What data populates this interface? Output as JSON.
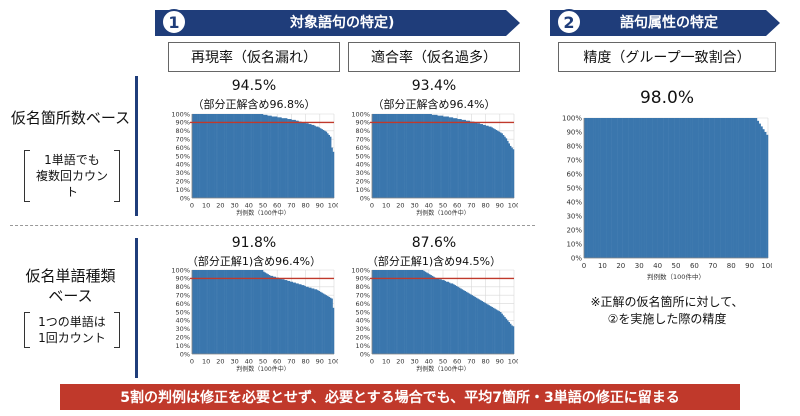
{
  "section1": {
    "number": "1",
    "title": "対象語句の特定)"
  },
  "section2": {
    "number": "2",
    "title": "語句属性の特定"
  },
  "columns": {
    "recall": "再現率（仮名漏れ）",
    "precision": "適合率（仮名過多）",
    "accuracy": "精度（グループ一致割合）"
  },
  "rows": {
    "top": {
      "label": "仮名箇所数ベース",
      "note_line1": "1単語でも",
      "note_line2": "複数回カウント"
    },
    "bottom": {
      "label_line1": "仮名単語種類",
      "label_line2": "ベース",
      "note_line1": "1つの単語は",
      "note_line2": "1回カウント"
    }
  },
  "metrics": {
    "top_recall": {
      "main": "94.5%",
      "sub": "（部分正解含め96.8%）"
    },
    "top_precision": {
      "main": "93.4%",
      "sub": "（部分正解含め96.4%）"
    },
    "bottom_recall": {
      "main": "91.8%",
      "sub": "（部分正解1)含め96.4%）"
    },
    "bottom_precision": {
      "main": "87.6%",
      "sub": "（部分正解1)含め94.5%）"
    },
    "accuracy": {
      "main": "98.0%"
    }
  },
  "note": {
    "line1": "※正解の仮名箇所に対して、",
    "line2": "②を実施した際の精度"
  },
  "footer": "5割の判例は修正を必要とせず、必要とする場合でも、平均7箇所・3単語の修正に留まる",
  "colors": {
    "navy": "#1f3d7a",
    "bar": "#3a76ad",
    "refline": "#c0392b",
    "footer": "#c0392b"
  },
  "chart_data": [
    {
      "id": "top_recall",
      "type": "bar",
      "xlabel": "判例数（100件中）",
      "ylim": [
        0,
        100
      ],
      "xlim": [
        0,
        100
      ],
      "x_ticks": [
        0,
        10,
        20,
        30,
        40,
        50,
        60,
        70,
        80,
        90,
        100
      ],
      "y_ticks": [
        "0%",
        "10%",
        "20%",
        "30%",
        "40%",
        "50%",
        "60%",
        "70%",
        "80%",
        "90%",
        "100%"
      ],
      "reference_line": 90,
      "values": [
        100,
        100,
        100,
        100,
        100,
        100,
        100,
        100,
        100,
        100,
        100,
        100,
        100,
        100,
        100,
        100,
        100,
        100,
        100,
        100,
        100,
        100,
        100,
        100,
        100,
        100,
        100,
        100,
        100,
        100,
        100,
        100,
        100,
        100,
        100,
        100,
        100,
        100,
        100,
        100,
        100,
        100,
        100,
        100,
        100,
        100,
        100,
        100,
        100,
        100,
        99,
        99,
        99,
        98,
        98,
        98,
        97,
        97,
        97,
        97,
        96,
        96,
        96,
        95,
        95,
        95,
        95,
        94,
        94,
        94,
        93,
        93,
        93,
        92,
        92,
        91,
        91,
        90,
        90,
        90,
        89,
        89,
        88,
        88,
        87,
        87,
        86,
        85,
        85,
        84,
        83,
        82,
        81,
        80,
        79,
        77,
        75,
        73,
        60,
        55
      ]
    },
    {
      "id": "top_precision",
      "type": "bar",
      "xlabel": "判例数（100件中）",
      "ylim": [
        0,
        100
      ],
      "xlim": [
        0,
        100
      ],
      "x_ticks": [
        0,
        10,
        20,
        30,
        40,
        50,
        60,
        70,
        80,
        90,
        100
      ],
      "y_ticks": [
        "0%",
        "10%",
        "20%",
        "30%",
        "40%",
        "50%",
        "60%",
        "70%",
        "80%",
        "90%",
        "100%"
      ],
      "reference_line": 90,
      "values": [
        100,
        100,
        100,
        100,
        100,
        100,
        100,
        100,
        100,
        100,
        100,
        100,
        100,
        100,
        100,
        100,
        100,
        100,
        100,
        100,
        100,
        100,
        100,
        100,
        100,
        100,
        100,
        100,
        100,
        100,
        100,
        100,
        100,
        100,
        100,
        100,
        100,
        100,
        100,
        100,
        100,
        100,
        99,
        99,
        99,
        99,
        98,
        98,
        98,
        98,
        97,
        97,
        97,
        97,
        96,
        96,
        96,
        95,
        95,
        95,
        94,
        94,
        94,
        93,
        93,
        93,
        92,
        92,
        92,
        91,
        91,
        91,
        90,
        90,
        89,
        89,
        88,
        88,
        87,
        87,
        86,
        86,
        85,
        85,
        84,
        83,
        82,
        81,
        80,
        79,
        78,
        77,
        75,
        73,
        71,
        68,
        65,
        62,
        60,
        58
      ]
    },
    {
      "id": "bottom_recall",
      "type": "bar",
      "xlabel": "判例数（100件中）",
      "ylim": [
        0,
        100
      ],
      "xlim": [
        0,
        100
      ],
      "x_ticks": [
        0,
        10,
        20,
        30,
        40,
        50,
        60,
        70,
        80,
        90,
        100
      ],
      "y_ticks": [
        "0%",
        "10%",
        "20%",
        "30%",
        "40%",
        "50%",
        "60%",
        "70%",
        "80%",
        "90%",
        "100%"
      ],
      "reference_line": 90,
      "values": [
        100,
        100,
        100,
        100,
        100,
        100,
        100,
        100,
        100,
        100,
        100,
        100,
        100,
        100,
        100,
        100,
        100,
        100,
        100,
        100,
        100,
        100,
        100,
        100,
        100,
        100,
        100,
        100,
        100,
        100,
        100,
        100,
        100,
        100,
        100,
        100,
        100,
        100,
        100,
        100,
        100,
        100,
        100,
        100,
        100,
        100,
        100,
        100,
        100,
        100,
        98,
        97,
        96,
        95,
        94,
        93,
        93,
        92,
        92,
        91,
        91,
        90,
        90,
        89,
        89,
        88,
        88,
        87,
        87,
        86,
        86,
        85,
        85,
        84,
        84,
        83,
        83,
        82,
        82,
        81,
        80,
        80,
        79,
        79,
        78,
        78,
        77,
        77,
        76,
        75,
        74,
        73,
        72,
        71,
        70,
        69,
        68,
        67,
        66,
        55
      ]
    },
    {
      "id": "bottom_precision",
      "type": "bar",
      "xlabel": "判例数（100件中）",
      "ylim": [
        0,
        100
      ],
      "xlim": [
        0,
        100
      ],
      "x_ticks": [
        0,
        10,
        20,
        30,
        40,
        50,
        60,
        70,
        80,
        90,
        100
      ],
      "y_ticks": [
        "0%",
        "10%",
        "20%",
        "30%",
        "40%",
        "50%",
        "60%",
        "70%",
        "80%",
        "90%",
        "100%"
      ],
      "reference_line": 90,
      "values": [
        100,
        100,
        100,
        100,
        100,
        100,
        100,
        100,
        100,
        100,
        100,
        100,
        100,
        100,
        100,
        100,
        100,
        100,
        100,
        100,
        100,
        100,
        100,
        100,
        100,
        100,
        100,
        100,
        100,
        100,
        100,
        100,
        100,
        100,
        100,
        100,
        99,
        98,
        97,
        96,
        95,
        94,
        93,
        92,
        91,
        90,
        90,
        89,
        89,
        88,
        88,
        87,
        86,
        86,
        85,
        84,
        84,
        83,
        82,
        81,
        80,
        79,
        78,
        77,
        76,
        75,
        74,
        73,
        72,
        71,
        70,
        69,
        68,
        67,
        66,
        65,
        64,
        63,
        62,
        61,
        60,
        59,
        58,
        57,
        56,
        55,
        54,
        53,
        52,
        51,
        50,
        48,
        46,
        44,
        42,
        40,
        38,
        36,
        34,
        33
      ]
    },
    {
      "id": "accuracy",
      "type": "bar",
      "xlabel": "判例数（100件中）",
      "ylim": [
        0,
        100
      ],
      "xlim": [
        0,
        100
      ],
      "x_ticks": [
        0,
        10,
        20,
        30,
        40,
        50,
        60,
        70,
        80,
        90,
        100
      ],
      "y_ticks": [
        "0%",
        "10%",
        "20%",
        "30%",
        "40%",
        "50%",
        "60%",
        "70%",
        "80%",
        "90%",
        "100%"
      ],
      "reference_line": null,
      "values": [
        100,
        100,
        100,
        100,
        100,
        100,
        100,
        100,
        100,
        100,
        100,
        100,
        100,
        100,
        100,
        100,
        100,
        100,
        100,
        100,
        100,
        100,
        100,
        100,
        100,
        100,
        100,
        100,
        100,
        100,
        100,
        100,
        100,
        100,
        100,
        100,
        100,
        100,
        100,
        100,
        100,
        100,
        100,
        100,
        100,
        100,
        100,
        100,
        100,
        100,
        100,
        100,
        100,
        100,
        100,
        100,
        100,
        100,
        100,
        100,
        100,
        100,
        100,
        100,
        100,
        100,
        100,
        100,
        100,
        100,
        100,
        100,
        100,
        100,
        100,
        100,
        100,
        100,
        100,
        100,
        100,
        100,
        100,
        100,
        100,
        100,
        100,
        100,
        100,
        100,
        100,
        100,
        100,
        100,
        98,
        96,
        94,
        92,
        90,
        88
      ]
    }
  ]
}
